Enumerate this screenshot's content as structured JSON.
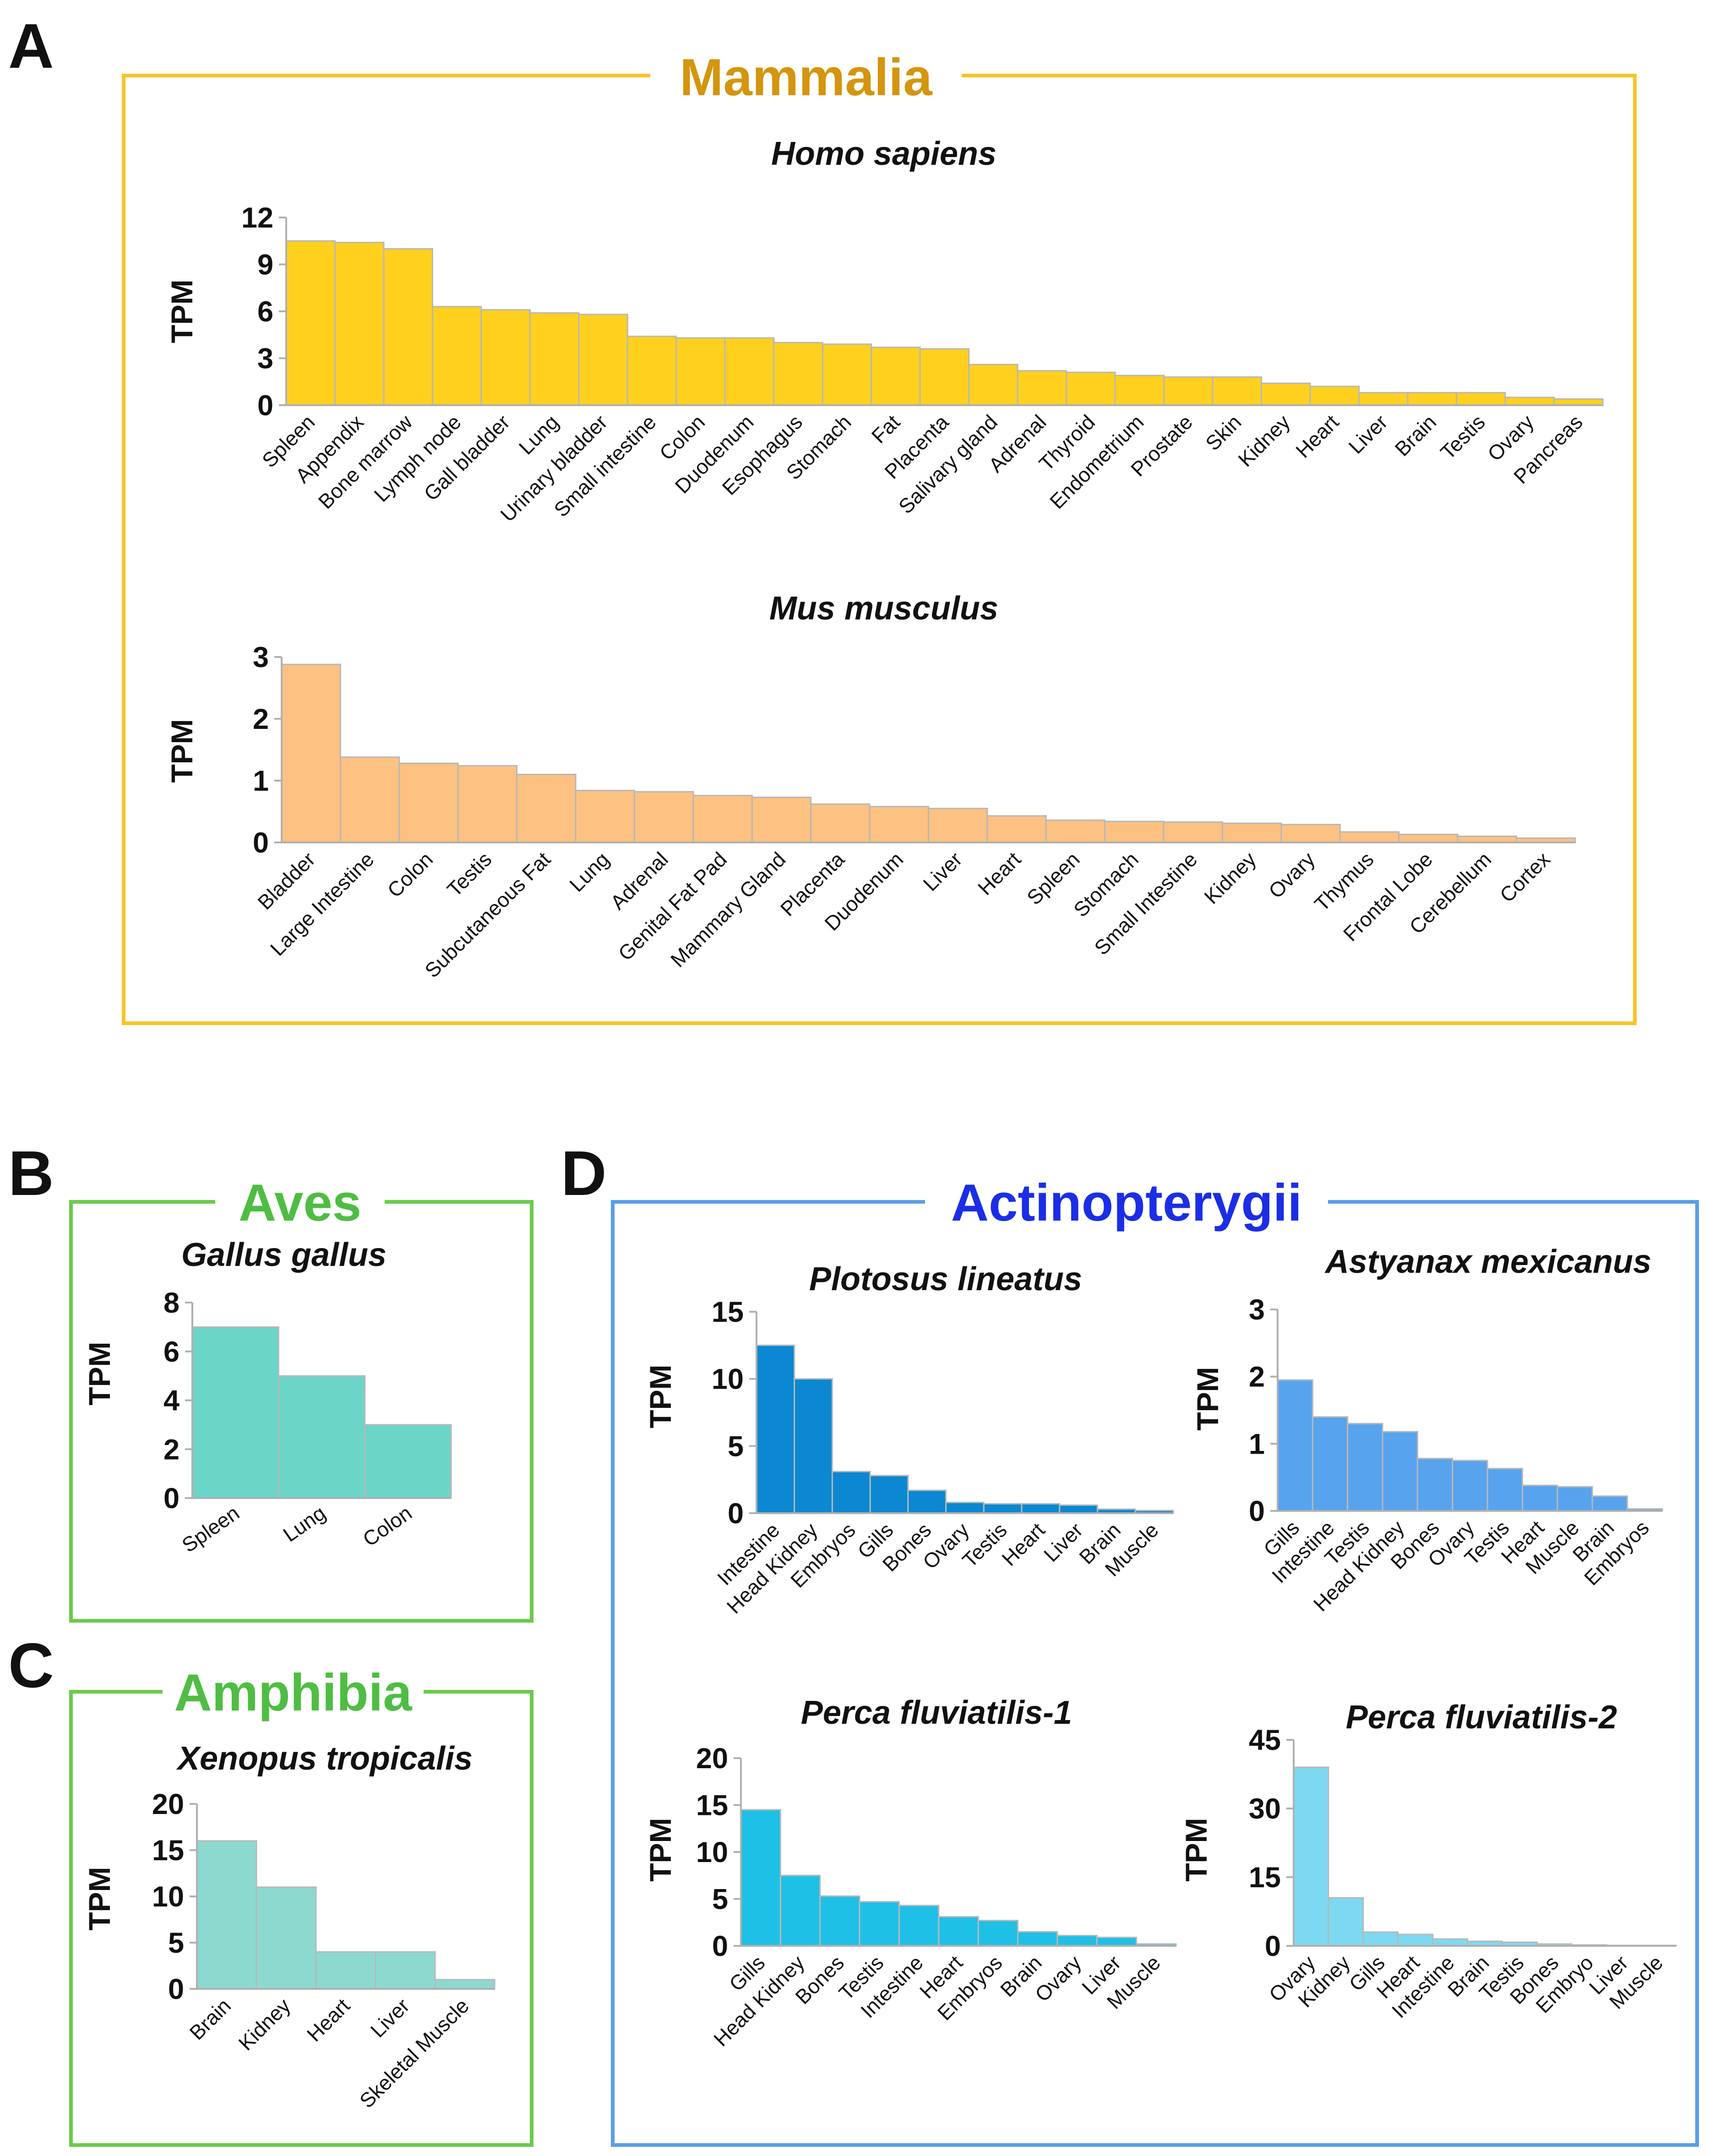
{
  "panels": [
    {
      "letter": "A",
      "group": "Mammalia",
      "color": "#f7c52b",
      "title_color": "#d4950f"
    },
    {
      "letter": "B",
      "group": "Aves",
      "color": "#6acb4a",
      "title_color": "#4fbd43"
    },
    {
      "letter": "C",
      "group": "Amphibia",
      "color": "#6acb4a",
      "title_color": "#4fbd43"
    },
    {
      "letter": "D",
      "group": "Actinopterygii",
      "color": "#5a9ee8",
      "title_color": "#1b2ee6"
    }
  ],
  "chart_data": [
    {
      "type": "bar",
      "panel": "A",
      "title": "Homo sapiens",
      "ylabel": "TPM",
      "xlabel": "",
      "ylim": [
        0,
        12
      ],
      "yticks": [
        0,
        3,
        6,
        9,
        12
      ],
      "color": "#ffd01e",
      "categories": [
        "Spleen",
        "Appendix",
        "Bone marrow",
        "Lymph node",
        "Gall bladder",
        "Lung",
        "Urinary bladder",
        "Small intestine",
        "Colon",
        "Duodenum",
        "Esophagus",
        "Stomach",
        "Fat",
        "Placenta",
        "Salivary gland",
        "Adrenal",
        "Thyroid",
        "Endometrium",
        "Prostate",
        "Skin",
        "Kidney",
        "Heart",
        "Liver",
        "Brain",
        "Testis",
        "Ovary",
        "Pancreas"
      ],
      "values": [
        10.5,
        10.4,
        10.0,
        6.3,
        6.1,
        5.9,
        5.8,
        4.4,
        4.3,
        4.3,
        4.0,
        3.9,
        3.7,
        3.6,
        2.6,
        2.2,
        2.1,
        1.9,
        1.8,
        1.8,
        1.4,
        1.2,
        0.8,
        0.8,
        0.8,
        0.5,
        0.4
      ]
    },
    {
      "type": "bar",
      "panel": "A",
      "title": "Mus musculus",
      "ylabel": "TPM",
      "xlabel": "",
      "ylim": [
        0,
        3
      ],
      "yticks": [
        0,
        1,
        2,
        3
      ],
      "color": "#fdc182",
      "categories": [
        "Bladder",
        "Large Intestine",
        "Colon",
        "Testis",
        "Subcutaneous Fat",
        "Lung",
        "Adrenal",
        "Genital Fat Pad",
        "Mammary Gland",
        "Placenta",
        "Duodenum",
        "Liver",
        "Heart",
        "Spleen",
        "Stomach",
        "Small Intestine",
        "Kidney",
        "Ovary",
        "Thymus",
        "Frontal Lobe",
        "Cerebellum",
        "Cortex"
      ],
      "values": [
        2.88,
        1.38,
        1.28,
        1.24,
        1.1,
        0.84,
        0.82,
        0.76,
        0.73,
        0.62,
        0.58,
        0.55,
        0.43,
        0.36,
        0.34,
        0.33,
        0.31,
        0.29,
        0.17,
        0.13,
        0.1,
        0.07
      ]
    },
    {
      "type": "bar",
      "panel": "B",
      "title": "Gallus gallus",
      "ylabel": "TPM",
      "xlabel": "",
      "ylim": [
        0,
        8
      ],
      "yticks": [
        0,
        2,
        4,
        6,
        8
      ],
      "color": "#6bd5c8",
      "categories": [
        "Spleen",
        "Lung",
        "Colon"
      ],
      "values": [
        7,
        5,
        3
      ]
    },
    {
      "type": "bar",
      "panel": "C",
      "title": "Xenopus tropicalis",
      "ylabel": "TPM",
      "xlabel": "",
      "ylim": [
        0,
        20
      ],
      "yticks": [
        0,
        5,
        10,
        15,
        20
      ],
      "color": "#8cd9d0",
      "categories": [
        "Brain",
        "Kidney",
        "Heart",
        "Liver",
        "Skeletal Muscle"
      ],
      "values": [
        16,
        11,
        4,
        4,
        1
      ]
    },
    {
      "type": "bar",
      "panel": "D",
      "title": "Plotosus lineatus",
      "ylabel": "TPM",
      "xlabel": "",
      "ylim": [
        0,
        15
      ],
      "yticks": [
        0,
        5,
        10,
        15
      ],
      "color": "#0b88d1",
      "categories": [
        "Intestine",
        "Head Kidney",
        "Embryos",
        "Gills",
        "Bones",
        "Ovary",
        "Testis",
        "Heart",
        "Liver",
        "Brain",
        "Muscle"
      ],
      "values": [
        12.5,
        10,
        3.1,
        2.8,
        1.7,
        0.8,
        0.7,
        0.7,
        0.6,
        0.3,
        0.2
      ]
    },
    {
      "type": "bar",
      "panel": "D",
      "title": "Astyanax mexicanus",
      "ylabel": "TPM",
      "xlabel": "",
      "ylim": [
        0,
        3
      ],
      "yticks": [
        0,
        1,
        2,
        3
      ],
      "color": "#58a3ee",
      "categories": [
        "Gills",
        "Intestine",
        "Testis",
        "Head Kidney",
        "Bones",
        "Ovary",
        "Testis",
        "Heart",
        "Muscle",
        "Brain",
        "Embryos"
      ],
      "values": [
        1.95,
        1.4,
        1.3,
        1.18,
        0.78,
        0.75,
        0.63,
        0.38,
        0.36,
        0.22,
        0.03
      ]
    },
    {
      "type": "bar",
      "panel": "D",
      "title": "Perca fluviatilis-1",
      "ylabel": "TPM",
      "xlabel": "",
      "ylim": [
        0,
        20
      ],
      "yticks": [
        0,
        5,
        10,
        15,
        20
      ],
      "color": "#1fc0e6",
      "categories": [
        "Gills",
        "Head Kidney",
        "Bones",
        "Testis",
        "Intestine",
        "Heart",
        "Embryos",
        "Brain",
        "Ovary",
        "Liver",
        "Muscle"
      ],
      "values": [
        14.5,
        7.5,
        5.3,
        4.7,
        4.3,
        3.1,
        2.7,
        1.5,
        1.1,
        0.9,
        0.2
      ]
    },
    {
      "type": "bar",
      "panel": "D",
      "title": "Perca fluviatilis-2",
      "ylabel": "TPM",
      "xlabel": "",
      "ylim": [
        0,
        45
      ],
      "yticks": [
        0,
        15,
        30,
        45
      ],
      "color": "#7dd9f1",
      "categories": [
        "Ovary",
        "Kidney",
        "Gills",
        "Heart",
        "Intestine",
        "Brain",
        "Testis",
        "Bones",
        "Embryo",
        "Liver",
        "Muscle"
      ],
      "values": [
        39,
        10.5,
        3,
        2.5,
        1.5,
        1,
        0.8,
        0.4,
        0.2,
        0.1,
        0.1
      ]
    }
  ]
}
